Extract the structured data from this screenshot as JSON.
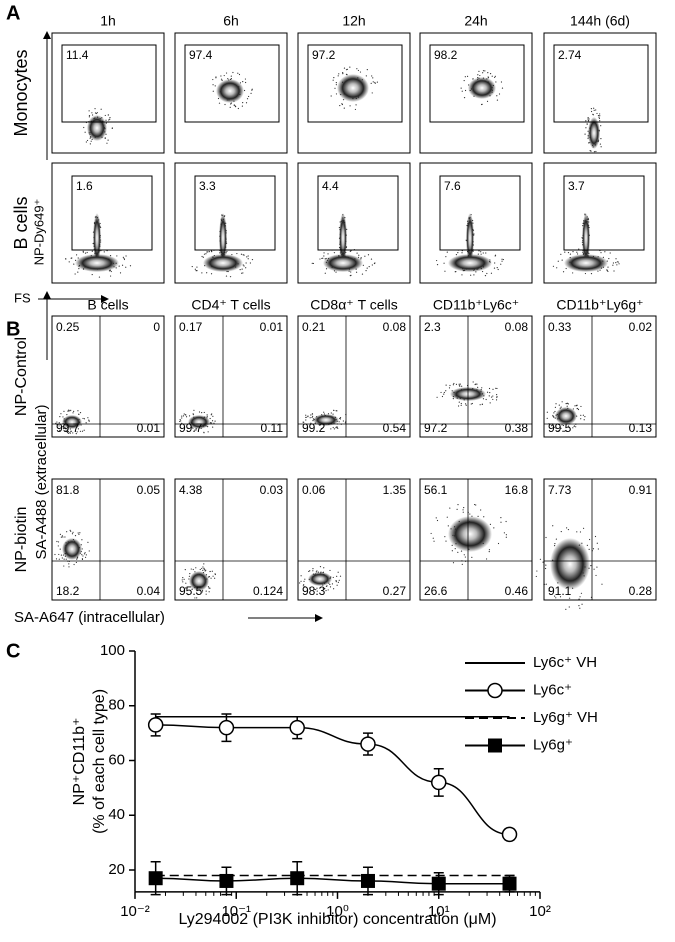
{
  "panel_a": {
    "label": "A",
    "columns": [
      "1h",
      "6h",
      "12h",
      "24h",
      "144h (6d)"
    ],
    "rows": [
      {
        "label": "Monocytes",
        "gates": [
          11.4,
          97.4,
          97.2,
          98.2,
          2.74
        ]
      },
      {
        "label": "B cells",
        "gates": [
          1.6,
          3.3,
          4.4,
          7.6,
          3.7
        ]
      }
    ],
    "y_axis_label": "NP-Dy649⁺",
    "x_axis_label": "FS"
  },
  "panel_b": {
    "label": "B",
    "columns": [
      "B cells",
      "CD4⁺ T cells",
      "CD8α⁺ T cells",
      "CD11b⁺Ly6c⁺",
      "CD11b⁺Ly6g⁺"
    ],
    "rows": [
      {
        "label": "NP-Control",
        "quadrants": [
          [
            0.25,
            0,
            99.7,
            0.01
          ],
          [
            0.17,
            0.01,
            99.7,
            0.11
          ],
          [
            0.21,
            0.08,
            99.2,
            0.54
          ],
          [
            2.3,
            0.08,
            97.2,
            0.38
          ],
          [
            0.33,
            0.02,
            99.5,
            0.13
          ]
        ]
      },
      {
        "label": "NP-biotin",
        "quadrants": [
          [
            81.8,
            0.05,
            18.2,
            0.04
          ],
          [
            4.38,
            0.03,
            95.5,
            0.124
          ],
          [
            0.06,
            1.35,
            98.3,
            0.27
          ],
          [
            56.1,
            16.8,
            26.6,
            0.46
          ],
          [
            7.73,
            0.91,
            91.1,
            0.28
          ]
        ]
      }
    ],
    "y_axis_label": "SA-A488 (extracellular)",
    "x_axis_label": "SA-A647 (intracellular)"
  },
  "chart_data": {
    "type": "line",
    "panel_label": "C",
    "xlabel": "Ly294002 (PI3K inhibitor) concentration (μM)",
    "ylabel": [
      "NP⁺CD11b⁺",
      "(% of each cell type)"
    ],
    "xscale": "log",
    "xlim": [
      0.01,
      100
    ],
    "xticks": [
      {
        "value": 0.01,
        "label": "10⁻²"
      },
      {
        "value": 0.1,
        "label": "10⁻¹"
      },
      {
        "value": 1,
        "label": "10⁰"
      },
      {
        "value": 10,
        "label": "10¹"
      },
      {
        "value": 100,
        "label": "10²"
      }
    ],
    "ylim": [
      12,
      100
    ],
    "yticks": [
      20,
      40,
      60,
      80,
      100
    ],
    "legend": "upper right",
    "series": [
      {
        "name": "Ly6c⁺ VH",
        "color": "#000000",
        "marker": "none",
        "line_style": "solid",
        "x": [
          0.016,
          50
        ],
        "values": [
          76,
          76
        ]
      },
      {
        "name": "Ly6c⁺",
        "color": "#000000",
        "marker": "open-circle",
        "line_style": "solid",
        "x": [
          0.016,
          0.08,
          0.4,
          2,
          10,
          50
        ],
        "values": [
          73,
          72,
          72,
          66,
          52,
          33
        ],
        "errors": [
          4,
          5,
          4,
          4,
          5,
          2
        ]
      },
      {
        "name": "Ly6g⁺ VH",
        "color": "#000000",
        "marker": "none",
        "line_style": "dashed",
        "x": [
          0.016,
          60
        ],
        "values": [
          18,
          18
        ]
      },
      {
        "name": "Ly6g⁺",
        "color": "#000000",
        "marker": "filled-square",
        "line_style": "solid",
        "x": [
          0.016,
          0.08,
          0.4,
          2,
          10,
          50
        ],
        "values": [
          17,
          16,
          17,
          16,
          15,
          15
        ],
        "errors": [
          6,
          5,
          6,
          5,
          4,
          3
        ]
      }
    ]
  }
}
